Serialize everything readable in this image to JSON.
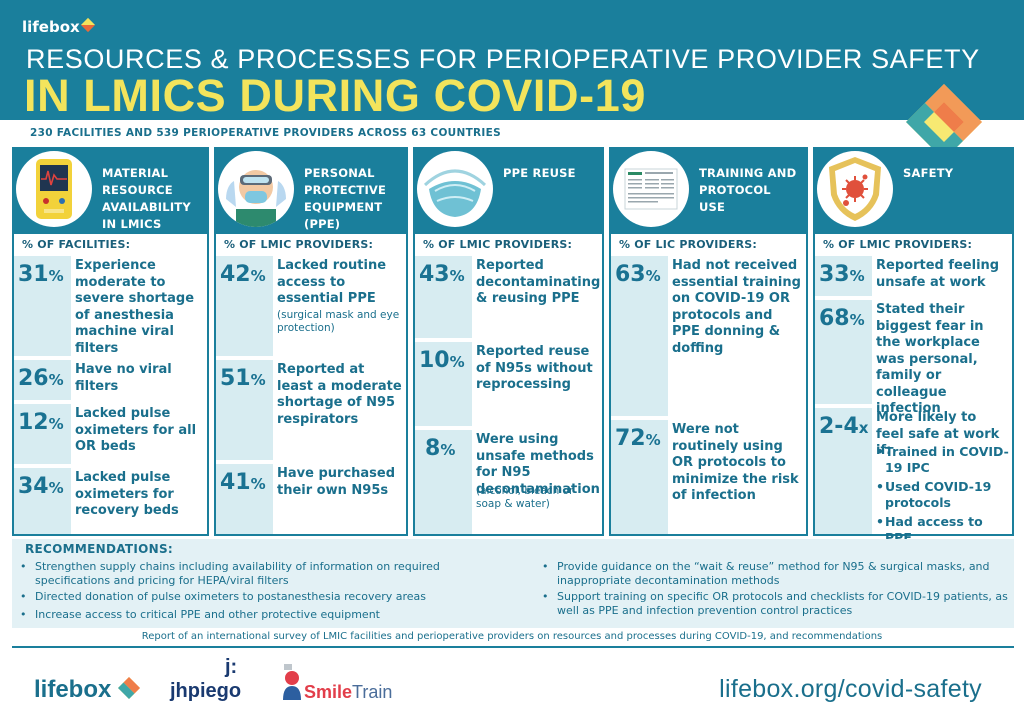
{
  "header": {
    "logo_text": "lifebox",
    "subtitle": "RESOURCES & PROCESSES FOR PERIOPERATIVE PROVIDER SAFETY",
    "title": "IN LMICS DURING COVID-19"
  },
  "intro": "230 FACILITIES AND 539 PERIOPERATIVE PROVIDERS ACROSS 63 COUNTRIES",
  "columns": [
    {
      "title": "MATERIAL RESOURCE AVAILABILITY IN LMICS",
      "icon": "monitor-icon",
      "subtitle": "% OF FACILITIES:",
      "stats": [
        {
          "pct": "31",
          "unit": "%",
          "text": "Experience moderate to severe shortage of anesthesia machine viral filters"
        },
        {
          "pct": "26",
          "unit": "%",
          "text": "Have no viral filters"
        },
        {
          "pct": "12",
          "unit": "%",
          "text": "Lacked pulse oximeters for all OR beds"
        },
        {
          "pct": "34",
          "unit": "%",
          "text": "Lacked pulse oximeters for recovery beds"
        }
      ]
    },
    {
      "title": "PERSONAL PROTECTIVE EQUIPMENT (PPE)",
      "icon": "ppe-worker-icon",
      "subtitle": "% OF LMIC PROVIDERS:",
      "stats": [
        {
          "pct": "42",
          "unit": "%",
          "text": "Lacked routine access to essential PPE",
          "note": "(surgical mask and eye protection)"
        },
        {
          "pct": "51",
          "unit": "%",
          "text": "Reported at least a moderate shortage of N95 respirators"
        },
        {
          "pct": "41",
          "unit": "%",
          "text": "Have purchased their own N95s"
        }
      ]
    },
    {
      "title": "PPE REUSE",
      "icon": "n95-mask-icon",
      "subtitle": "% OF LMIC PROVIDERS:",
      "stats": [
        {
          "pct": "43",
          "unit": "%",
          "text": "Reported decontaminating & reusing PPE"
        },
        {
          "pct": "10",
          "unit": "%",
          "text": "Reported reuse of N95s without reprocessing"
        },
        {
          "pct": "8",
          "unit": "%",
          "text": "Were using unsafe methods for N95 decontamination",
          "note": "(alcohol, bleach or soap & water)"
        }
      ]
    },
    {
      "title": "TRAINING AND PROTOCOL USE",
      "icon": "document-icon",
      "subtitle": "% OF LIC PROVIDERS:",
      "stats": [
        {
          "pct": "63",
          "unit": "%",
          "text": "Had not received essential training on COVID-19 OR protocols and PPE donning & doffing"
        },
        {
          "pct": "72",
          "unit": "%",
          "text": "Were not routinely using OR protocols to minimize the risk of infection"
        }
      ]
    },
    {
      "title": "SAFETY",
      "icon": "shield-virus-icon",
      "subtitle": "% OF LMIC PROVIDERS:",
      "stats": [
        {
          "pct": "33",
          "unit": "%",
          "text": "Reported feeling unsafe at work"
        },
        {
          "pct": "68",
          "unit": "%",
          "text": "Stated their biggest fear in the workplace was personal, family or colleague infection"
        },
        {
          "pct": "2-4",
          "unit": "x",
          "text": "More likely to feel safe at work if:",
          "bullets": [
            "Trained in COVID-19 IPC",
            "Used COVID-19 protocols",
            "Had access to PPE"
          ]
        }
      ]
    }
  ],
  "recommendations": {
    "title": "RECOMMENDATIONS:",
    "items": [
      "Strengthen supply chains including availability of information on required specifications and pricing for HEPA/viral filters",
      "Directed donation of pulse oximeters to postanesthesia recovery areas",
      "Increase access to critical PPE and other protective equipment",
      "Provide guidance on the “wait & reuse” method for N95 & surgical masks, and inappropriate decontamination methods",
      "Support training on specific OR protocols and checklists for COVID-19 patients, as well as PPE and infection prevention control practices"
    ]
  },
  "footnote": "Report of an international survey of LMIC facilities and perioperative providers on resources and processes during COVID-19, and recommendations",
  "footer": {
    "logos": [
      "lifebox",
      "jhpiego",
      "Smile",
      "Train"
    ],
    "jhpiego_mark": "j:",
    "url": "lifebox.org/covid-safety"
  },
  "colors": {
    "primary": "#1a7f9c",
    "title_yellow": "#f3e45c",
    "panel_light": "#d7ecf1",
    "recs_bg": "#e3f1f5"
  }
}
